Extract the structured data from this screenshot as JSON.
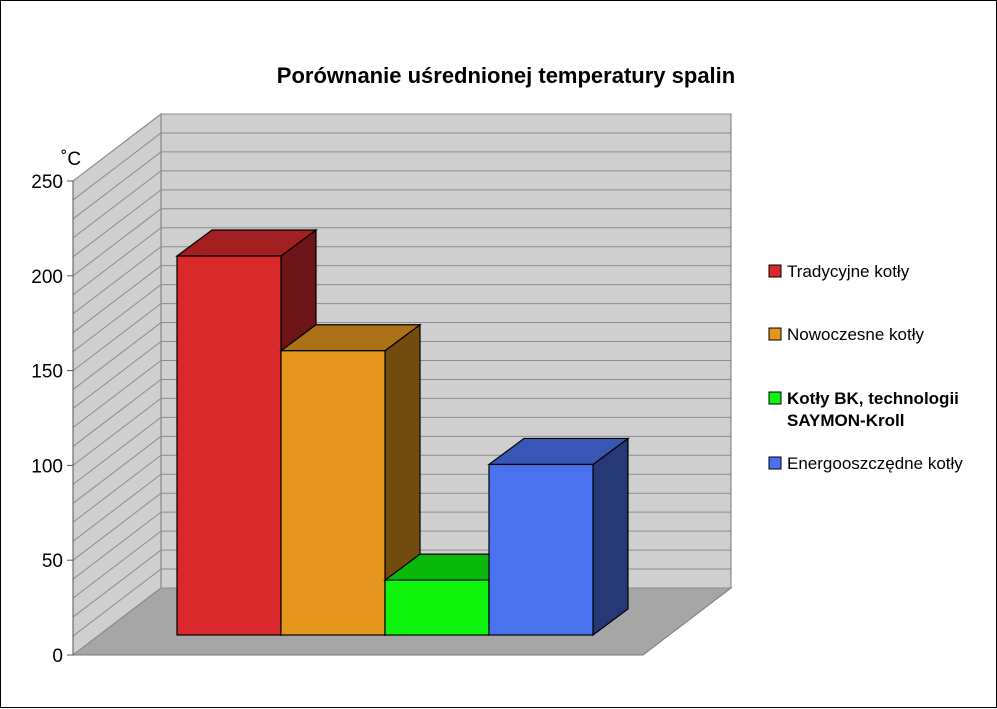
{
  "chart_data": {
    "type": "bar",
    "title": "Porównanie uśrednionej temperatury spalin",
    "ylabel": "˚C",
    "xlabel": "",
    "ylim": [
      0,
      250
    ],
    "yticks": [
      0,
      50,
      100,
      150,
      200,
      250
    ],
    "three_d": true,
    "grid": true,
    "legend_position": "right",
    "series": [
      {
        "name": "Tradycyjne kotły",
        "value": 200,
        "color": "#d9292b",
        "bold": false
      },
      {
        "name": "Nowoczesne kotły",
        "value": 150,
        "color": "#e4961e",
        "bold": false
      },
      {
        "name": "Kotły BK, technologii SAYMON-Kroll",
        "value": 20,
        "color": "#0df50d",
        "bold": true
      },
      {
        "name": "Energooszczędne kotły",
        "value": 90,
        "color": "#4a72ee",
        "bold": false
      }
    ],
    "colors": {
      "wall": "#cfcfcf",
      "floor": "#a6a6a6",
      "gridline": "#8c8c8c"
    }
  }
}
